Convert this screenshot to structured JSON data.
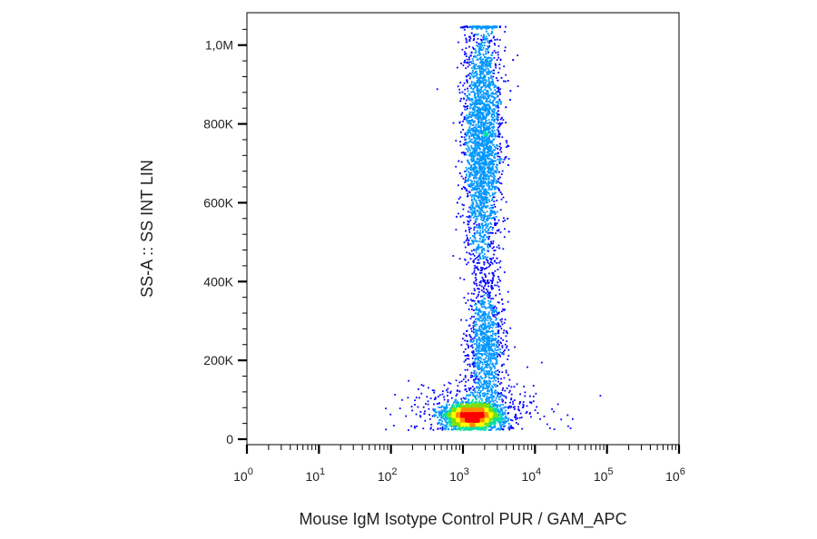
{
  "chart_data": {
    "type": "scatter",
    "style": "density-colored flow cytometry dot plot",
    "xlabel": "Mouse IgM Isotype Control PUR / GAM_APC",
    "ylabel": "SS-A :: SS INT LIN",
    "x_scale": "log",
    "y_scale": "linear",
    "xlim": [
      1,
      1000000
    ],
    "ylim": [
      0,
      1050000
    ],
    "x_ticks": [
      {
        "value": 1,
        "base": "10",
        "exp": "0"
      },
      {
        "value": 10,
        "base": "10",
        "exp": "1"
      },
      {
        "value": 100,
        "base": "10",
        "exp": "2"
      },
      {
        "value": 1000,
        "base": "10",
        "exp": "3"
      },
      {
        "value": 10000,
        "base": "10",
        "exp": "4"
      },
      {
        "value": 100000,
        "base": "10",
        "exp": "5"
      },
      {
        "value": 1000000,
        "base": "10",
        "exp": "6"
      }
    ],
    "y_ticks": [
      {
        "value": 0,
        "label": "0"
      },
      {
        "value": 200000,
        "label": "200K"
      },
      {
        "value": 400000,
        "label": "400K"
      },
      {
        "value": 600000,
        "label": "600K"
      },
      {
        "value": 800000,
        "label": "800K"
      },
      {
        "value": 1000000,
        "label": "1,0M"
      }
    ],
    "populations": [
      {
        "x_center": 1300,
        "x_spread_decades": 0.17,
        "y_center": 60000,
        "y_sd": 14000,
        "relative_count": 0.46
      },
      {
        "x_center": 1800,
        "x_spread_decades": 0.13,
        "y_center": 760000,
        "y_sd": 170000,
        "relative_count": 0.36
      },
      {
        "x_center": 2000,
        "x_spread_decades": 0.13,
        "y_center": 230000,
        "y_sd": 90000,
        "relative_count": 0.12
      },
      {
        "x_center": 1500,
        "x_spread_decades": 0.45,
        "y_center": 80000,
        "y_sd": 40000,
        "relative_count": 0.06
      }
    ],
    "colormap": [
      "#0000ff",
      "#0097ff",
      "#00e0a0",
      "#7fe000",
      "#ffff00",
      "#ff8c00",
      "#ff0000"
    ],
    "grid": false,
    "legend": "none"
  }
}
